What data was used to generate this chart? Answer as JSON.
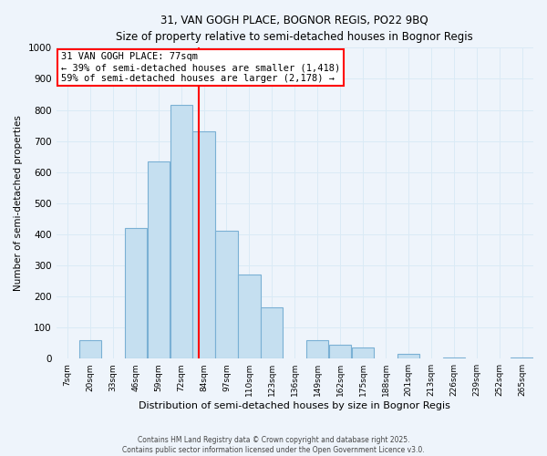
{
  "title": "31, VAN GOGH PLACE, BOGNOR REGIS, PO22 9BQ",
  "subtitle": "Size of property relative to semi-detached houses in Bognor Regis",
  "xlabel": "Distribution of semi-detached houses by size in Bognor Regis",
  "ylabel": "Number of semi-detached properties",
  "bin_labels": [
    "7sqm",
    "20sqm",
    "33sqm",
    "46sqm",
    "59sqm",
    "72sqm",
    "84sqm",
    "97sqm",
    "110sqm",
    "123sqm",
    "136sqm",
    "149sqm",
    "162sqm",
    "175sqm",
    "188sqm",
    "201sqm",
    "213sqm",
    "226sqm",
    "239sqm",
    "252sqm",
    "265sqm"
  ],
  "bar_heights": [
    0,
    60,
    0,
    420,
    635,
    815,
    730,
    410,
    270,
    165,
    0,
    60,
    45,
    35,
    0,
    15,
    0,
    5,
    0,
    0,
    5
  ],
  "bar_color": "#c5dff0",
  "bar_edge_color": "#7ab0d4",
  "grid_color": "#daeaf5",
  "vline_color": "red",
  "vline_label_index": 5,
  "annotation_text": "31 VAN GOGH PLACE: 77sqm\n← 39% of semi-detached houses are smaller (1,418)\n59% of semi-detached houses are larger (2,178) →",
  "annotation_box_color": "white",
  "annotation_box_edge_color": "red",
  "ylim": [
    0,
    1000
  ],
  "background_color": "#eef4fb",
  "footer_text": "Contains HM Land Registry data © Crown copyright and database right 2025.\nContains public sector information licensed under the Open Government Licence v3.0.",
  "bin_width": 13,
  "vline_x_data": 5.77
}
